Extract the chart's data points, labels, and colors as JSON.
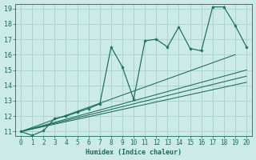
{
  "xlabel": "Humidex (Indice chaleur)",
  "bg_color": "#cceae6",
  "grid_color": "#aad4d0",
  "line_color": "#1a6b5e",
  "xlim": [
    -0.5,
    20.5
  ],
  "ylim": [
    10.7,
    19.3
  ],
  "yticks": [
    11,
    12,
    13,
    14,
    15,
    16,
    17,
    18,
    19
  ],
  "xticks": [
    0,
    1,
    2,
    3,
    4,
    5,
    6,
    7,
    8,
    9,
    10,
    11,
    12,
    13,
    14,
    15,
    16,
    17,
    18,
    19,
    20
  ],
  "main_x": [
    0,
    1,
    2,
    3,
    4,
    5,
    6,
    7,
    8,
    9,
    10,
    11,
    12,
    13,
    14,
    15,
    16,
    17,
    18,
    19,
    20
  ],
  "main_y": [
    11.0,
    10.75,
    11.05,
    11.85,
    12.0,
    12.25,
    12.5,
    12.8,
    16.5,
    15.2,
    13.1,
    16.9,
    17.0,
    16.5,
    17.8,
    16.4,
    16.25,
    19.1,
    19.1,
    17.9,
    16.5
  ],
  "line1_x": [
    0,
    19
  ],
  "line1_y": [
    11.0,
    16.0
  ],
  "line2_x": [
    0,
    20
  ],
  "line2_y": [
    11.0,
    15.0
  ],
  "line3_x": [
    0,
    20
  ],
  "line3_y": [
    11.0,
    14.6
  ],
  "line4_x": [
    0,
    20
  ],
  "line4_y": [
    11.0,
    14.2
  ]
}
